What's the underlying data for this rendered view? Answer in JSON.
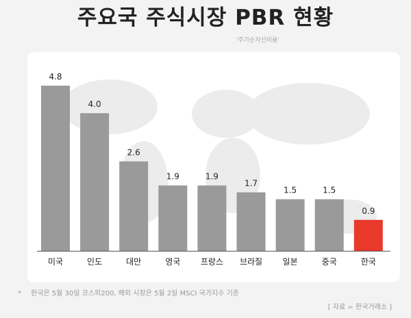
{
  "header": {
    "title": "주요국 주식시장 PBR 현황",
    "subtitle": "'주가순자산비율'"
  },
  "chart_data": {
    "type": "bar",
    "title": "주요국 주식시장 PBR 현황",
    "categories": [
      "미국",
      "인도",
      "대만",
      "영국",
      "프랑스",
      "브라질",
      "일본",
      "중국",
      "한국"
    ],
    "values": [
      4.8,
      4.0,
      2.6,
      1.9,
      1.9,
      1.7,
      1.5,
      1.5,
      0.9
    ],
    "value_labels": [
      "4.8",
      "4.0",
      "2.6",
      "1.9",
      "1.9",
      "1.7",
      "1.5",
      "1.5",
      "0.9"
    ],
    "colors": {
      "default": "#9a9a9a",
      "highlight": "#e8392a"
    },
    "highlight_category": "한국",
    "xlabel": "",
    "ylabel": "",
    "ylim": [
      0,
      4.8
    ],
    "grid": false,
    "legend": "none"
  },
  "footer": {
    "bullet": "*",
    "note": "한국은 5월 30일 코스피200,  해외 시장은 5월 2일 MSCI 국가지수 기준",
    "source": "[ 자료 = 한국거래소 ]"
  }
}
